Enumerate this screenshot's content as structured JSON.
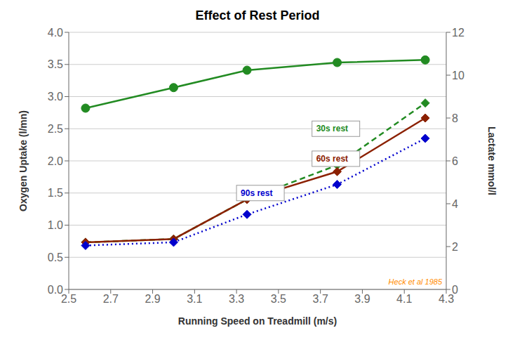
{
  "chart_data": {
    "type": "line",
    "title": "Effect of Rest Period",
    "x_label": "Running Speed on Treadmill (m/s)",
    "y_label": "Oxygen Uptake (l/mn)",
    "y2_label": "Lactate mmol/l",
    "x": [
      2.58,
      3.0,
      3.35,
      3.78,
      4.2
    ],
    "series": [
      {
        "color": "#228B22",
        "values": [
          2.82,
          3.14,
          3.41,
          3.53,
          3.57
        ],
        "marker": "circle",
        "line_style": "solid"
      },
      {
        "name": "30s rest",
        "color": "#228B22",
        "values": [
          2.2,
          2.35,
          4.2,
          5.8,
          8.7
        ],
        "axis": "y2",
        "marker": "diamond",
        "line_style": "dashed",
        "label_at": {
          "x": 3.68,
          "y": 7.5
        }
      },
      {
        "name": "60s rest",
        "color": "#8B2000",
        "values": [
          2.2,
          2.35,
          4.2,
          5.5,
          8.0
        ],
        "axis": "y2",
        "marker": "diamond",
        "line_style": "solid",
        "label_at": {
          "x": 3.68,
          "y": 6.1
        }
      },
      {
        "name": "90s rest",
        "color": "#0000CD",
        "values": [
          2.05,
          2.2,
          3.5,
          4.9,
          7.05
        ],
        "axis": "y2",
        "marker": "diamond",
        "line_style": "dotted",
        "label_at": {
          "x": 3.32,
          "y": 4.5
        }
      }
    ],
    "xlim": [
      2.5,
      4.3
    ],
    "xticks": [
      2.5,
      2.7,
      2.9,
      3.1,
      3.3,
      3.5,
      3.7,
      3.9,
      4.1,
      4.3
    ],
    "ylim": [
      0,
      4
    ],
    "yticks": [
      {
        "value": 0,
        "label": "0.0"
      },
      0.5,
      {
        "value": 1,
        "label": "1.0"
      },
      1.5,
      {
        "value": 2,
        "label": "2.0"
      },
      2.5,
      {
        "value": 3,
        "label": "3.0"
      },
      3.5,
      {
        "value": 4,
        "label": "4.0"
      }
    ],
    "y2lim": [
      0,
      12
    ],
    "y2ticks": [
      0,
      2,
      4,
      6,
      8,
      10,
      12
    ],
    "grid": true,
    "annotations": [
      {
        "text": "Heck et al 1985",
        "x": 4.28,
        "y": 0.15,
        "axis": "y2",
        "color": "#FF8C00"
      }
    ]
  }
}
